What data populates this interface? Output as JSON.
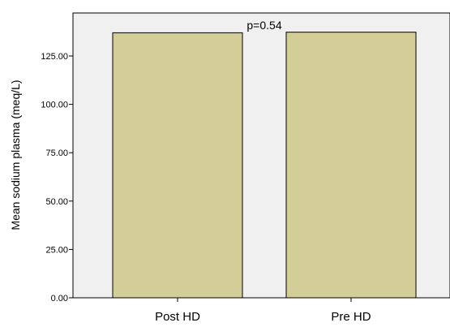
{
  "chart_data": {
    "type": "bar",
    "categories": [
      "Post HD",
      "Pre HD"
    ],
    "values": [
      137.0,
      137.3
    ],
    "title": "",
    "xlabel": "",
    "ylabel": "Mean sodium plasma (meq/L)",
    "ylim": [
      0,
      150
    ],
    "yticks": [
      "0.00",
      "25.00",
      "50.00",
      "75.00",
      "100.00",
      "125.00"
    ],
    "ytick_values": [
      0,
      25,
      50,
      75,
      100,
      125
    ],
    "annotation": "p=0.54",
    "grid": false,
    "colors": {
      "bar_fill": "#d3ce98",
      "bar_stroke": "#000000",
      "plot_background": "#f0f0f0"
    }
  }
}
